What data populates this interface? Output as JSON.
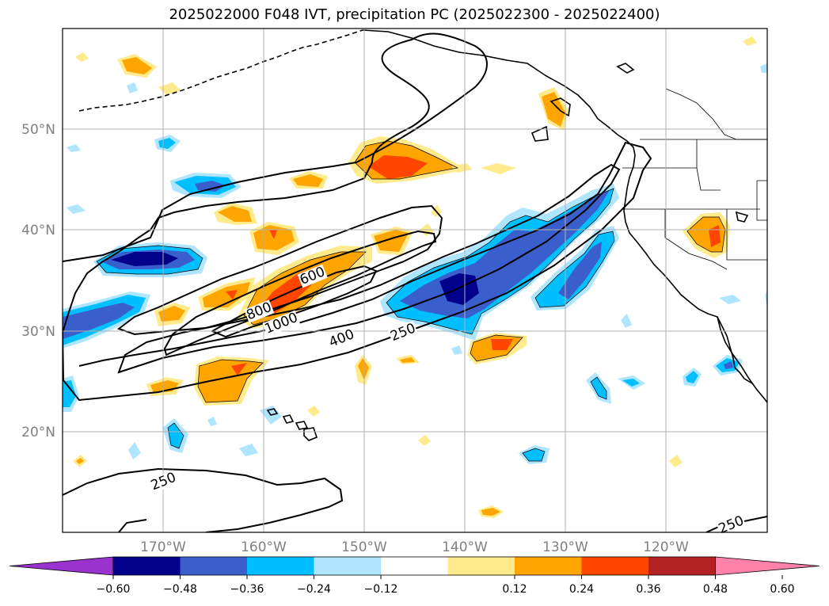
{
  "title": "2025022000 F048 IVT, precipitation PC (2025022300 - 2025022400)",
  "map": {
    "lon_range": [
      -180,
      -110
    ],
    "lat_range": [
      10,
      60
    ],
    "lon_ticks": [
      {
        "lon": -170,
        "label": "170°W"
      },
      {
        "lon": -160,
        "label": "160°W"
      },
      {
        "lon": -150,
        "label": "150°W"
      },
      {
        "lon": -140,
        "label": "140°W"
      },
      {
        "lon": -130,
        "label": "130°W"
      },
      {
        "lon": -120,
        "label": "120°W"
      }
    ],
    "lat_ticks": [
      {
        "lat": 20,
        "label": "20°N"
      },
      {
        "lat": 30,
        "label": "30°N"
      },
      {
        "lat": 40,
        "label": "40°N"
      },
      {
        "lat": 50,
        "label": "50°N"
      }
    ],
    "ivt_contour_labels": [
      {
        "text": "600",
        "lon": -155.2,
        "lat": 35.5
      },
      {
        "text": "800",
        "lon": -160.5,
        "lat": 32.0
      },
      {
        "text": "1000",
        "lon": -158.3,
        "lat": 30.8
      },
      {
        "text": "400",
        "lon": -152.3,
        "lat": 29.3
      },
      {
        "text": "250",
        "lon": -146.2,
        "lat": 29.9
      },
      {
        "text": "250",
        "lon": -170.0,
        "lat": 15.1
      },
      {
        "text": "250",
        "lon": -113.6,
        "lat": 10.8
      }
    ]
  },
  "colorbar": {
    "ticks": [
      "−0.60",
      "−0.48",
      "−0.36",
      "−0.24",
      "−0.12",
      "0.12",
      "0.24",
      "0.36",
      "0.48",
      "0.60"
    ],
    "colors": [
      "#9a32cd",
      "#00008b",
      "#3a5fcd",
      "#00bfff",
      "#afe5ff",
      "#ffffff",
      "#ffeb8c",
      "#ffa500",
      "#ff4500",
      "#b22222",
      "#ff82ab"
    ]
  }
}
